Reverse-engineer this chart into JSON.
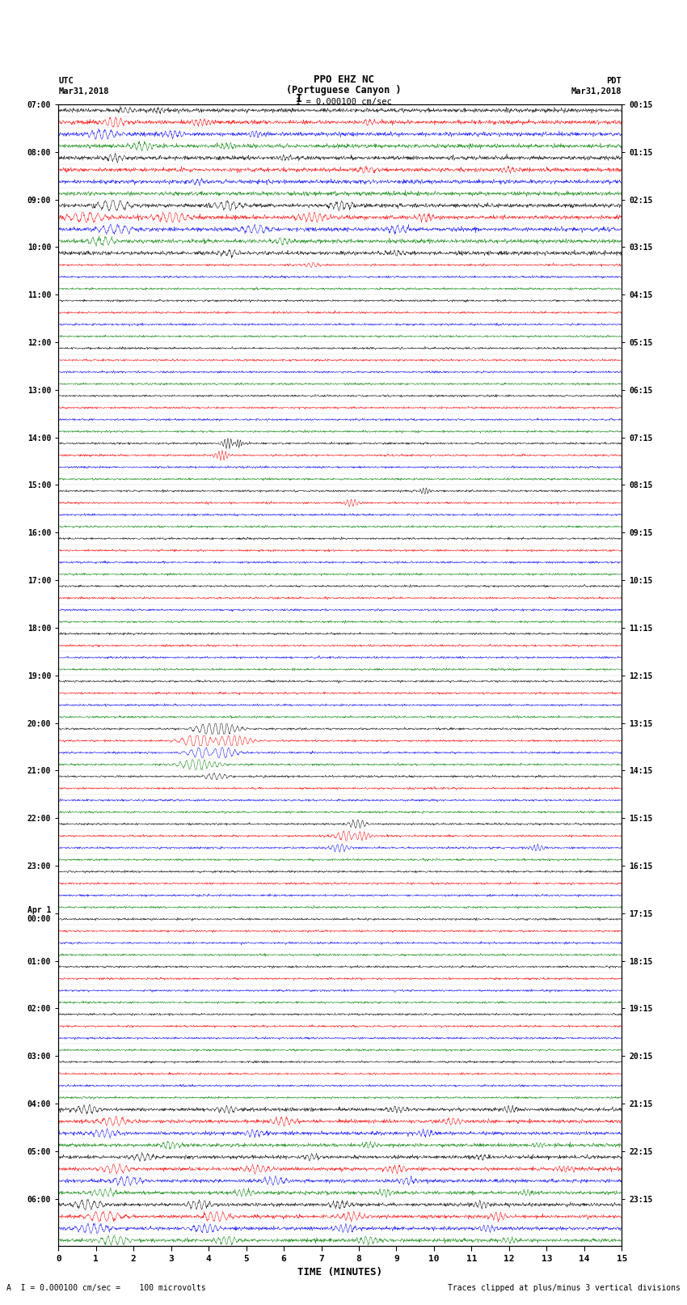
{
  "title": "PPO EHZ NC",
  "subtitle": "(Portuguese Canyon )",
  "scale_label": "I = 0.000100 cm/sec",
  "utc_label_line1": "UTC",
  "utc_label_line2": "Mar31,2018",
  "pdt_label_line1": "PDT",
  "pdt_label_line2": "Mar31,2018",
  "left_times": [
    "07:00",
    "08:00",
    "09:00",
    "10:00",
    "11:00",
    "12:00",
    "13:00",
    "14:00",
    "15:00",
    "16:00",
    "17:00",
    "18:00",
    "19:00",
    "20:00",
    "21:00",
    "22:00",
    "23:00",
    "Apr 1\n00:00",
    "01:00",
    "02:00",
    "03:00",
    "04:00",
    "05:00",
    "06:00"
  ],
  "right_times": [
    "00:15",
    "01:15",
    "02:15",
    "03:15",
    "04:15",
    "05:15",
    "06:15",
    "07:15",
    "08:15",
    "09:15",
    "10:15",
    "11:15",
    "12:15",
    "13:15",
    "14:15",
    "15:15",
    "16:15",
    "17:15",
    "18:15",
    "19:15",
    "20:15",
    "21:15",
    "22:15",
    "23:15"
  ],
  "xlabel": "TIME (MINUTES)",
  "bottom_left": "A  I = 0.000100 cm/sec =    100 microvolts",
  "bottom_right": "Traces clipped at plus/minus 3 vertical divisions",
  "trace_colors": [
    "black",
    "red",
    "blue",
    "green"
  ],
  "n_rows": 96,
  "background_color": "white",
  "figsize": [
    8.5,
    16.13
  ],
  "dpi": 100,
  "xlim": [
    0,
    15
  ],
  "xticks": [
    0,
    1,
    2,
    3,
    4,
    5,
    6,
    7,
    8,
    9,
    10,
    11,
    12,
    13,
    14,
    15
  ]
}
